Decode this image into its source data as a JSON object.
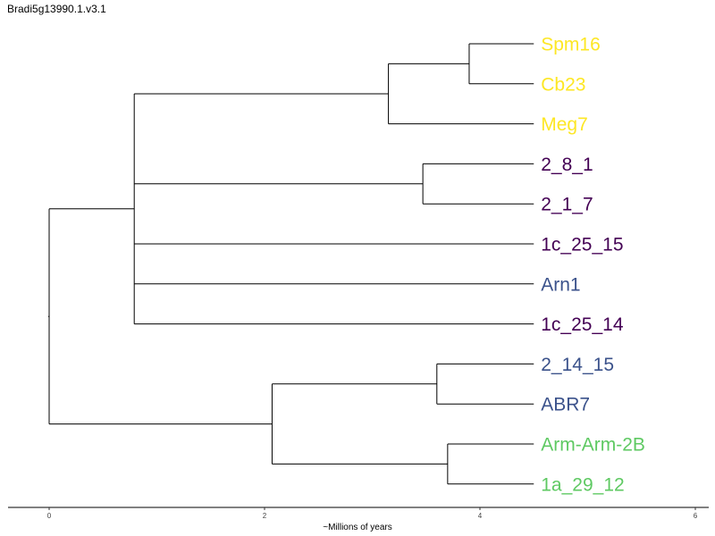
{
  "title": "Bradi5g13990.1.v3.1",
  "colors": {
    "branch": "#000000",
    "yellow": "#fde725",
    "purple": "#440154",
    "blue": "#3b528b",
    "green": "#5ec962"
  },
  "axis": {
    "label": "~Millions of years",
    "ticks": [
      "0",
      "2",
      "4",
      "6"
    ]
  },
  "tips": [
    {
      "label": "Spm16",
      "color": "yellow"
    },
    {
      "label": "Cb23",
      "color": "yellow"
    },
    {
      "label": "Meg7",
      "color": "yellow"
    },
    {
      "label": "2_8_1",
      "color": "purple"
    },
    {
      "label": "2_1_7",
      "color": "purple"
    },
    {
      "label": "1c_25_15",
      "color": "purple"
    },
    {
      "label": "Arn1",
      "color": "blue"
    },
    {
      "label": "1c_25_14",
      "color": "purple"
    },
    {
      "label": "2_14_15",
      "color": "blue"
    },
    {
      "label": "ABR7",
      "color": "blue"
    },
    {
      "label": "Arm-Arm-2B",
      "color": "green"
    },
    {
      "label": "1a_29_12",
      "color": "green"
    }
  ],
  "tree": {
    "node_ages": {
      "root": 0.0,
      "cladeA": 0.79,
      "yellowClade": 3.15,
      "spmCb": 3.9,
      "clade28": 3.47,
      "cladeB": 2.07,
      "clade214": 3.6,
      "cladeArm": 3.7,
      "tips": 4.5
    }
  }
}
